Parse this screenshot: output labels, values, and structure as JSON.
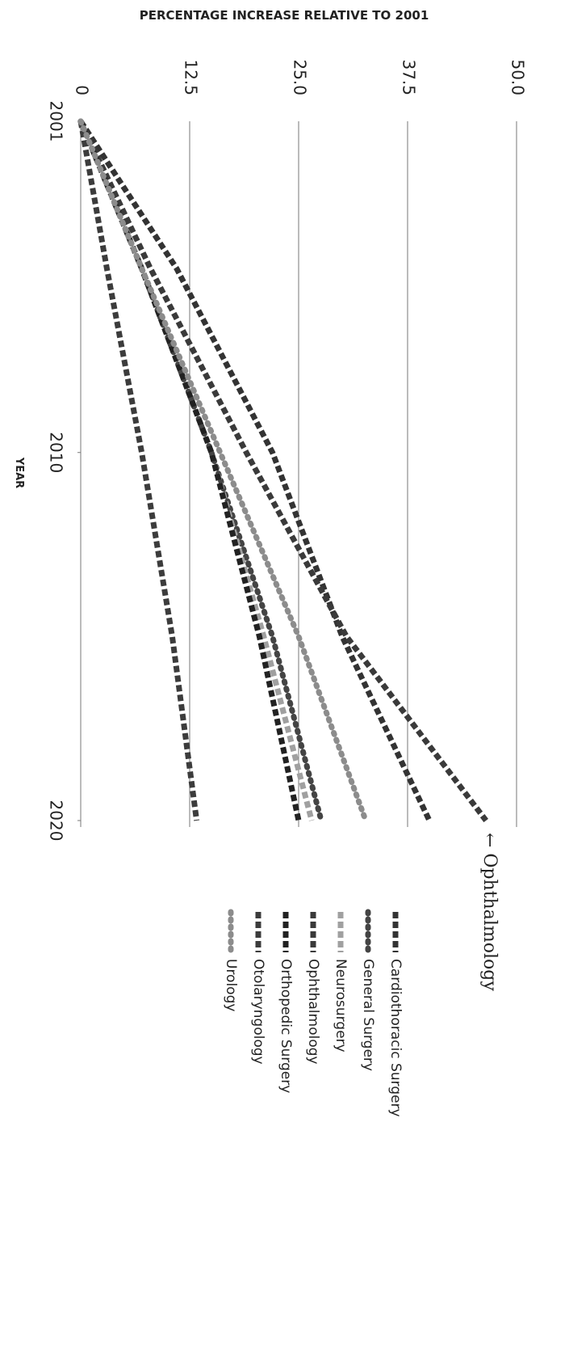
{
  "chart_data": {
    "type": "line",
    "title": "PERCENTAGE INCREASE RELATIVE TO 2001",
    "x_label": "YEAR",
    "x": [
      2001,
      2005,
      2010,
      2015,
      2020
    ],
    "xlim": [
      2001,
      2020
    ],
    "xticks": [
      2001,
      2010,
      2020
    ],
    "ylim": [
      0,
      50
    ],
    "yticks": [
      0,
      12.5,
      {
        "value": 25,
        "label": "25.0"
      },
      37.5,
      {
        "value": 50,
        "label": "50.0"
      }
    ],
    "grid": true,
    "annotation": "← Ophthalmology",
    "series": [
      {
        "name": "Cardiothoracic Surgery",
        "color": "#333333",
        "style": "dashed",
        "values": [
          0,
          11,
          22,
          30,
          40
        ]
      },
      {
        "name": "General Surgery",
        "color": "#444444",
        "style": "dotted",
        "values": [
          0,
          7,
          15,
          22,
          27.6
        ]
      },
      {
        "name": "Neurosurgery",
        "color": "#a0a0a0",
        "style": "dashed",
        "values": [
          0,
          7,
          15,
          21,
          26.5
        ]
      },
      {
        "name": "Ophthalmology",
        "color": "#3a3a3a",
        "style": "dashed",
        "values": [
          0,
          8,
          19,
          30.5,
          46.5
        ]
      },
      {
        "name": "Orthopedic Surgery",
        "color": "#222222",
        "style": "dashed",
        "values": [
          0,
          7,
          15,
          20.5,
          25
        ]
      },
      {
        "name": "Otolaryngology",
        "color": "#3c3c3c",
        "style": "dashed",
        "values": [
          0,
          3,
          7,
          10.5,
          13.3
        ]
      },
      {
        "name": "Urology",
        "color": "#8c8c8c",
        "style": "dotted",
        "values": [
          0,
          7,
          16,
          25,
          32.7
        ]
      }
    ]
  }
}
